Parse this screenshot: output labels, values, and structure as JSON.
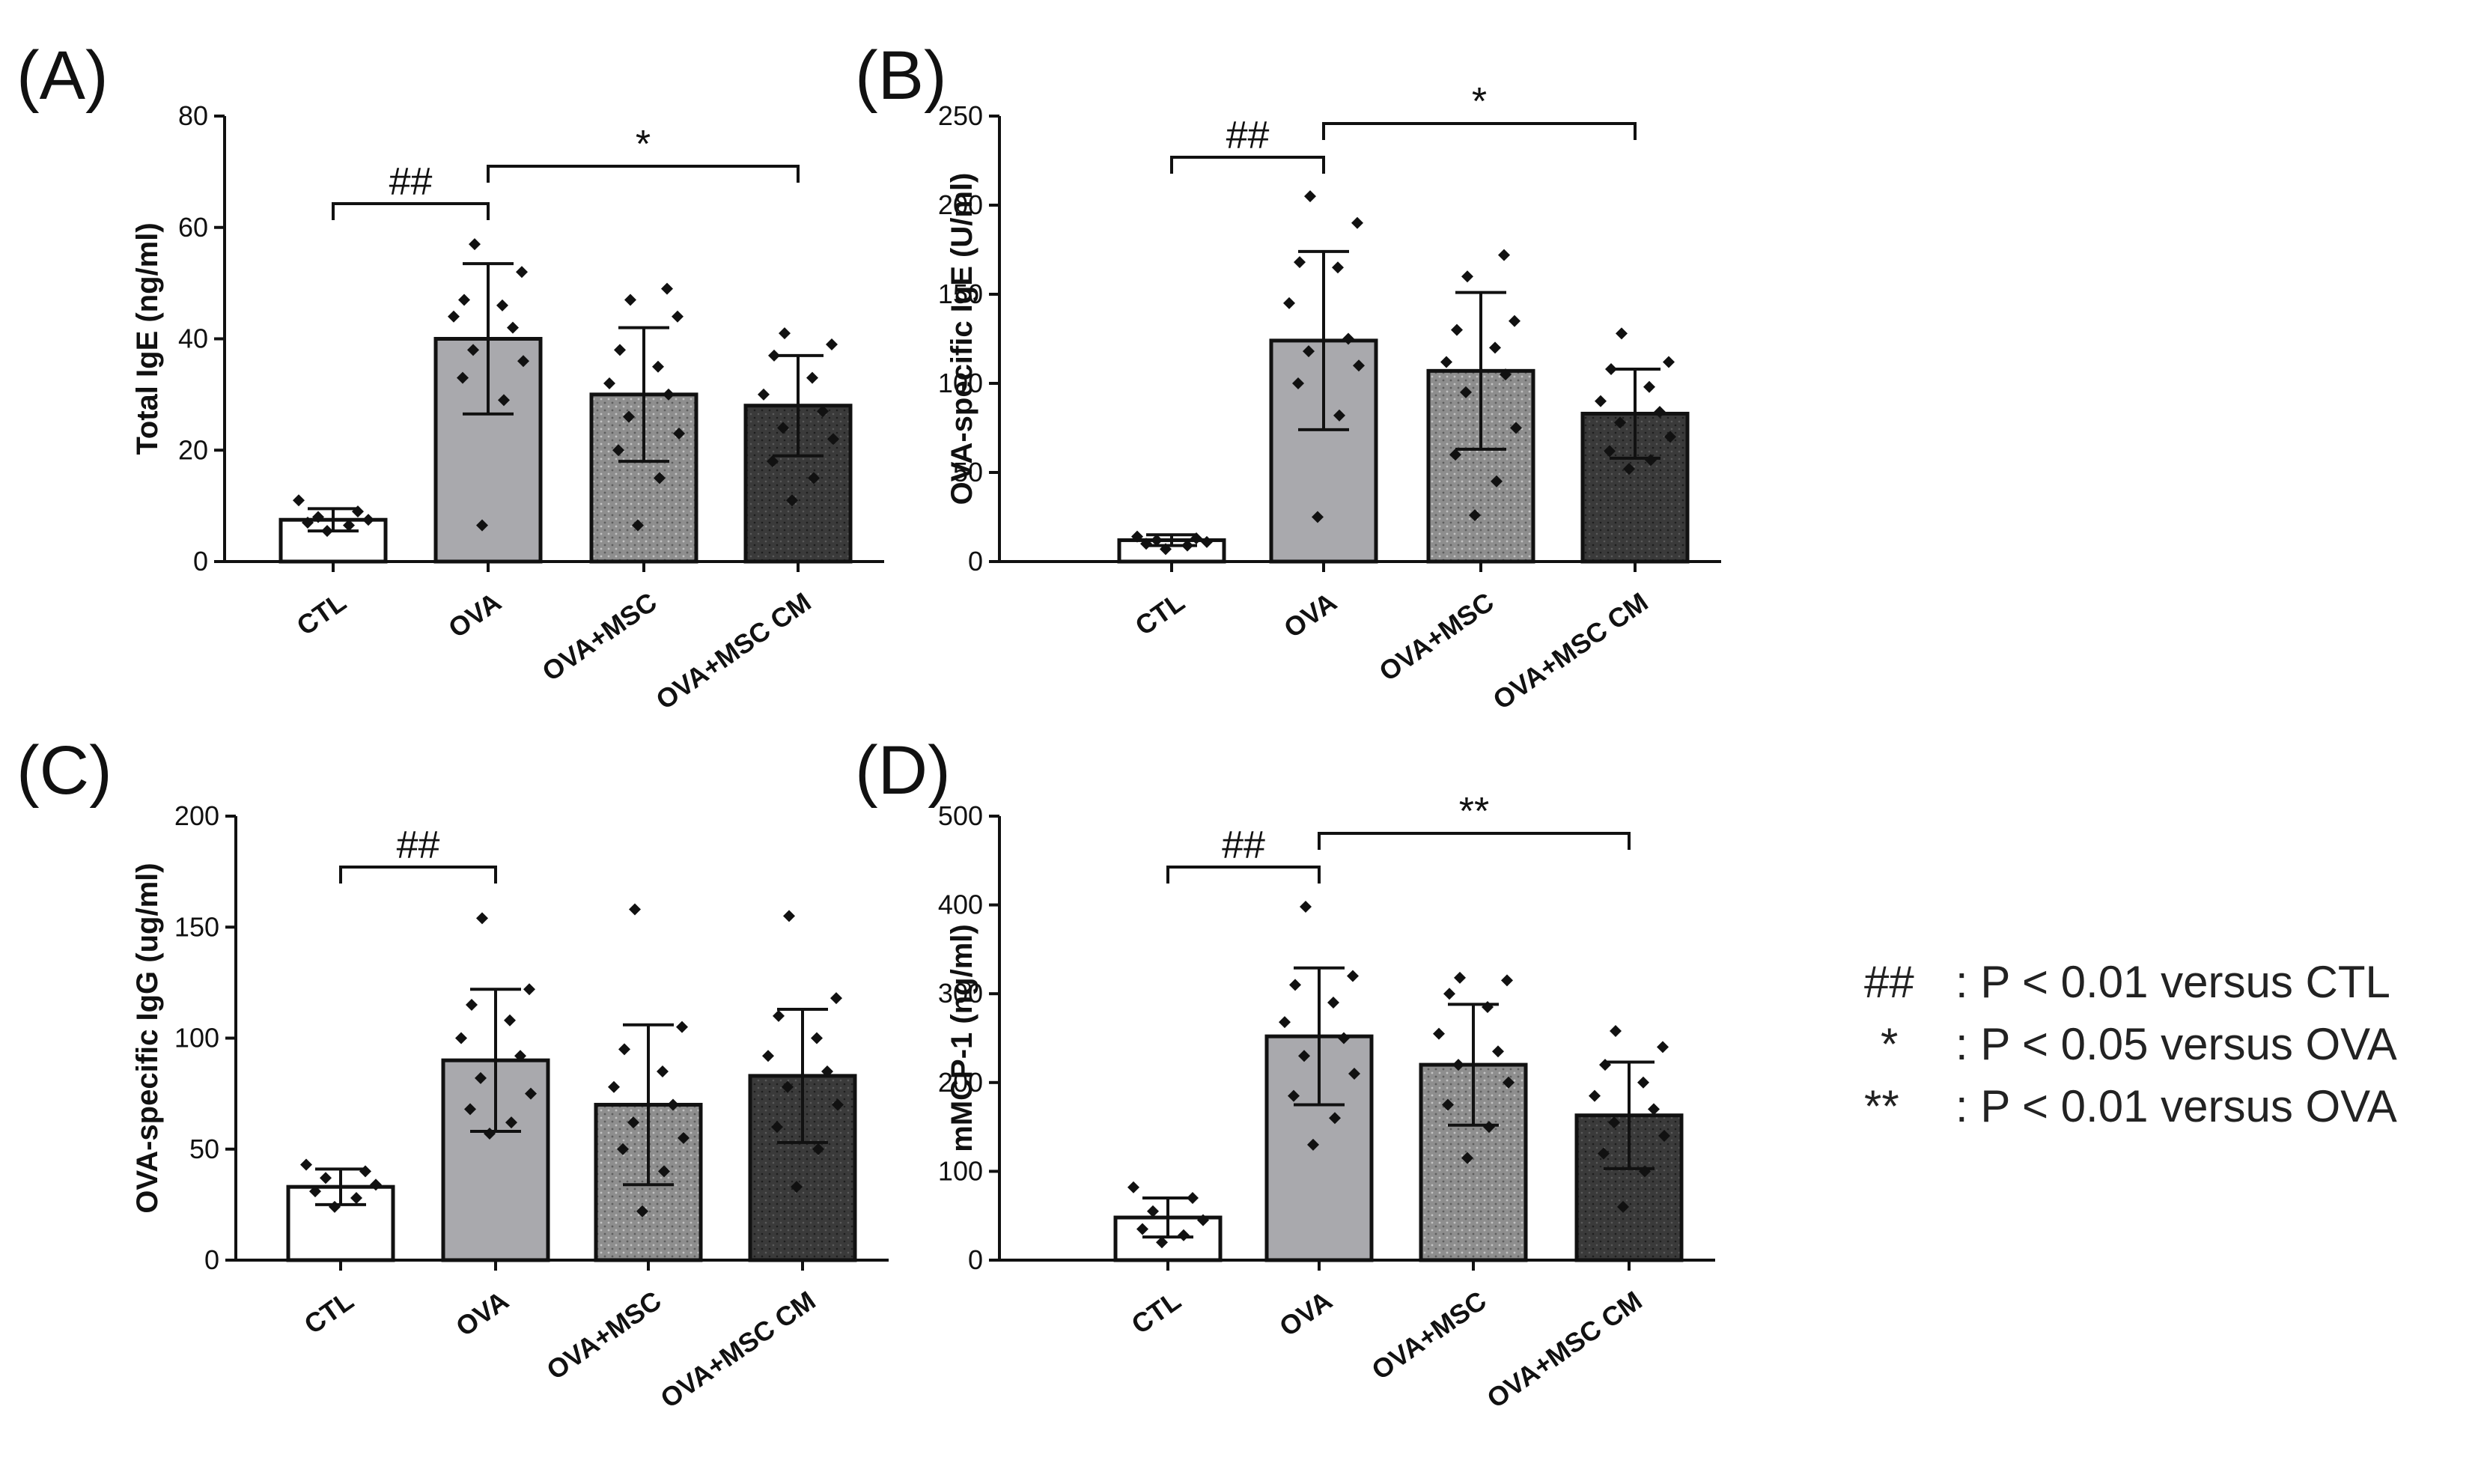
{
  "colors": {
    "axis": "#111111",
    "bar_stroke": "#111111",
    "ctl_fill": "#ffffff",
    "ova_fill": "#a9a9ad",
    "msc_fill": "#8c8c8c",
    "cm_fill": "#3a3a3a",
    "point": "#111111"
  },
  "legend": [
    {
      "symbol": "##",
      "text": ": P < 0.01 versus CTL"
    },
    {
      "symbol": "*",
      "text": ": P < 0.05 versus OVA"
    },
    {
      "symbol": "**",
      "text": ": P < 0.01 versus OVA"
    }
  ],
  "chart_data": [
    {
      "panel": "(A)",
      "type": "bar",
      "ylabel": "Total IgE  (ng/ml)",
      "ylim": [
        0,
        80
      ],
      "yticks": [
        0,
        20,
        40,
        60,
        80
      ],
      "categories": [
        "CTL",
        "OVA",
        "OVA+MSC",
        "OVA+MSC CM"
      ],
      "means": [
        7.5,
        40,
        30,
        28
      ],
      "sd": [
        2,
        13.5,
        12,
        9
      ],
      "points": [
        [
          5.5,
          6.5,
          7,
          7.5,
          8,
          9,
          11
        ],
        [
          6.5,
          29,
          33,
          36,
          38,
          42,
          44,
          46,
          47,
          52,
          57
        ],
        [
          6.5,
          15,
          20,
          23,
          26,
          30,
          32,
          35,
          38,
          44,
          47,
          49
        ],
        [
          11,
          15,
          18,
          22,
          24,
          27,
          30,
          33,
          37,
          39,
          41
        ]
      ],
      "significance": [
        {
          "from": 0,
          "to": 1,
          "label": "##"
        },
        {
          "from": 1,
          "to": 3,
          "label": "*"
        }
      ]
    },
    {
      "panel": "(B)",
      "type": "bar",
      "ylabel": "OVA-specific IgE (U/ml)",
      "ylim": [
        0,
        250
      ],
      "yticks": [
        0,
        50,
        100,
        150,
        200,
        250
      ],
      "categories": [
        "CTL",
        "OVA",
        "OVA+MSC",
        "OVA+MSC CM"
      ],
      "means": [
        12,
        124,
        107,
        83
      ],
      "sd": [
        3,
        50,
        44,
        25
      ],
      "points": [
        [
          7,
          9,
          10,
          11,
          12,
          13,
          14
        ],
        [
          25,
          82,
          100,
          110,
          118,
          125,
          145,
          165,
          168,
          190,
          205
        ],
        [
          26,
          45,
          60,
          75,
          95,
          105,
          112,
          120,
          130,
          135,
          160,
          172
        ],
        [
          52,
          57,
          62,
          70,
          78,
          84,
          90,
          98,
          108,
          112,
          128
        ]
      ],
      "significance": [
        {
          "from": 0,
          "to": 1,
          "label": "##"
        },
        {
          "from": 1,
          "to": 3,
          "label": "*"
        }
      ]
    },
    {
      "panel": "(C)",
      "type": "bar",
      "ylabel": "OVA-specific IgG (ug/ml)",
      "ylim": [
        0,
        200
      ],
      "yticks": [
        0,
        50,
        100,
        150,
        200
      ],
      "categories": [
        "CTL",
        "OVA",
        "OVA+MSC",
        "OVA+MSC CM"
      ],
      "means": [
        33,
        90,
        70,
        83
      ],
      "sd": [
        8,
        32,
        36,
        30
      ],
      "points": [
        [
          24,
          28,
          31,
          34,
          37,
          40,
          43
        ],
        [
          57,
          62,
          68,
          75,
          82,
          92,
          100,
          108,
          115,
          122,
          154
        ],
        [
          22,
          40,
          50,
          55,
          62,
          70,
          78,
          85,
          95,
          105,
          158
        ],
        [
          33,
          50,
          60,
          70,
          78,
          85,
          92,
          100,
          110,
          118,
          155
        ]
      ],
      "significance": [
        {
          "from": 0,
          "to": 1,
          "label": "##"
        }
      ]
    },
    {
      "panel": "(D)",
      "type": "bar",
      "ylabel": "mMCP-1 (ng/ml)",
      "ylim": [
        0,
        500
      ],
      "yticks": [
        0,
        100,
        200,
        300,
        400,
        500
      ],
      "categories": [
        "CTL",
        "OVA",
        "OVA+MSC",
        "OVA+MSC CM"
      ],
      "means": [
        48,
        252,
        220,
        163
      ],
      "sd": [
        22,
        77,
        68,
        60
      ],
      "points": [
        [
          20,
          28,
          35,
          45,
          55,
          70,
          82
        ],
        [
          130,
          160,
          185,
          210,
          230,
          250,
          268,
          290,
          310,
          320,
          398
        ],
        [
          115,
          150,
          175,
          200,
          220,
          235,
          255,
          285,
          300,
          315,
          318
        ],
        [
          60,
          100,
          120,
          140,
          155,
          170,
          185,
          200,
          220,
          240,
          258
        ]
      ],
      "significance": [
        {
          "from": 0,
          "to": 1,
          "label": "##"
        },
        {
          "from": 1,
          "to": 3,
          "label": "**"
        }
      ]
    }
  ]
}
